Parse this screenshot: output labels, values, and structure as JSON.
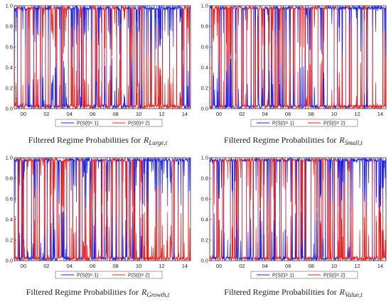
{
  "chart_data": [
    {
      "type": "line",
      "caption_prefix": "Filtered Regime Probabilities for",
      "caption_symbol": "R",
      "caption_subscript": "Large,t",
      "x_ticks": [
        "00",
        "02",
        "04",
        "06",
        "08",
        "10",
        "12",
        "14"
      ],
      "y_ticks": [
        "0.0",
        "0.2",
        "0.4",
        "0.6",
        "0.8",
        "1.0"
      ],
      "xlim": [
        1999.2,
        2014.5
      ],
      "ylim": [
        0,
        1
      ],
      "legend_position": "bottom-center",
      "series": [
        {
          "name": "P(S(t)= 1)",
          "color": "#1f1fe6"
        },
        {
          "name": "P(S(t)= 2)",
          "color": "#e61f1f"
        }
      ],
      "regime2_intervals": [
        [
          1999.5,
          1999.8
        ],
        [
          2000.3,
          2000.9
        ],
        [
          2001.5,
          2001.9
        ],
        [
          2002.3,
          2002.9
        ],
        [
          2003.3,
          2003.9
        ],
        [
          2004.8,
          2005.1
        ],
        [
          2006.0,
          2006.4
        ],
        [
          2006.8,
          2007.2
        ],
        [
          2007.6,
          2008.1
        ],
        [
          2008.5,
          2009.0
        ],
        [
          2009.3,
          2009.6
        ],
        [
          2010.1,
          2010.3
        ],
        [
          2013.8,
          2014.4
        ]
      ]
    },
    {
      "type": "line",
      "caption_prefix": "Filtered Regime Probabilities for",
      "caption_symbol": "R",
      "caption_subscript": "Small,t",
      "x_ticks": [
        "00",
        "02",
        "04",
        "06",
        "08",
        "10",
        "12",
        "14"
      ],
      "y_ticks": [
        "0.0",
        "0.2",
        "0.4",
        "0.6",
        "0.8",
        "1.0"
      ],
      "xlim": [
        1999.2,
        2014.5
      ],
      "ylim": [
        0,
        1
      ],
      "legend_position": "bottom-center",
      "series": [
        {
          "name": "P(S(t)= 1)",
          "color": "#1f1fe6"
        },
        {
          "name": "P(S(t)= 2)",
          "color": "#e61f1f"
        }
      ],
      "regime2_intervals": [
        [
          1999.4,
          2000.1
        ],
        [
          2000.5,
          2001.2
        ],
        [
          2001.6,
          2002.0
        ],
        [
          2002.4,
          2003.0
        ],
        [
          2003.4,
          2003.9
        ],
        [
          2004.3,
          2004.8
        ],
        [
          2005.2,
          2005.6
        ],
        [
          2006.2,
          2006.6
        ],
        [
          2007.0,
          2007.5
        ],
        [
          2008.0,
          2008.6
        ],
        [
          2009.0,
          2009.4
        ],
        [
          2010.0,
          2010.3
        ],
        [
          2011.0,
          2011.3
        ],
        [
          2012.6,
          2012.9
        ]
      ]
    },
    {
      "type": "line",
      "caption_prefix": "Filtered Regime Probabilities for",
      "caption_symbol": "R",
      "caption_subscript": "Growth,t",
      "x_ticks": [
        "00",
        "02",
        "04",
        "06",
        "08",
        "10",
        "12",
        "14"
      ],
      "y_ticks": [
        "0.0",
        "0.2",
        "0.4",
        "0.6",
        "0.8",
        "1.0"
      ],
      "xlim": [
        1999.2,
        2014.5
      ],
      "ylim": [
        0,
        1
      ],
      "legend_position": "bottom-center",
      "series": [
        {
          "name": "P(S(t)= 1)",
          "color": "#1f1fe6"
        },
        {
          "name": "P(S(t)= 2)",
          "color": "#e61f1f"
        }
      ],
      "regime2_intervals": [
        [
          1999.6,
          1999.9
        ],
        [
          2000.3,
          2000.9
        ],
        [
          2001.4,
          2001.9
        ],
        [
          2002.3,
          2002.9
        ],
        [
          2003.3,
          2004.0
        ],
        [
          2004.8,
          2005.1
        ],
        [
          2005.9,
          2006.3
        ],
        [
          2006.8,
          2007.2
        ],
        [
          2007.6,
          2008.1
        ],
        [
          2008.5,
          2009.0
        ],
        [
          2009.3,
          2009.6
        ],
        [
          2010.1,
          2010.3
        ],
        [
          2012.9,
          2013.1
        ]
      ]
    },
    {
      "type": "line",
      "caption_prefix": "Filtered Regime Probabilities for",
      "caption_symbol": "R",
      "caption_subscript": "Value,t",
      "x_ticks": [
        "00",
        "02",
        "04",
        "06",
        "08",
        "10",
        "12",
        "14"
      ],
      "y_ticks": [
        "0.0",
        "0.2",
        "0.4",
        "0.6",
        "0.8",
        "1.0"
      ],
      "xlim": [
        1999.2,
        2014.5
      ],
      "ylim": [
        0,
        1
      ],
      "legend_position": "bottom-center",
      "series": [
        {
          "name": "P(S(t)= 1)",
          "color": "#1f1fe6"
        },
        {
          "name": "P(S(t)= 2)",
          "color": "#e61f1f"
        }
      ],
      "regime2_intervals": [
        [
          1999.5,
          1999.8
        ],
        [
          2000.3,
          2001.0
        ],
        [
          2001.5,
          2002.0
        ],
        [
          2002.4,
          2003.0
        ],
        [
          2003.4,
          2003.9
        ],
        [
          2004.5,
          2004.9
        ],
        [
          2005.4,
          2005.8
        ],
        [
          2006.3,
          2006.7
        ],
        [
          2007.1,
          2007.5
        ],
        [
          2008.0,
          2008.6
        ],
        [
          2008.9,
          2009.4
        ],
        [
          2010.0,
          2010.3
        ],
        [
          2011.2,
          2011.4
        ],
        [
          2013.3,
          2013.5
        ]
      ]
    }
  ]
}
